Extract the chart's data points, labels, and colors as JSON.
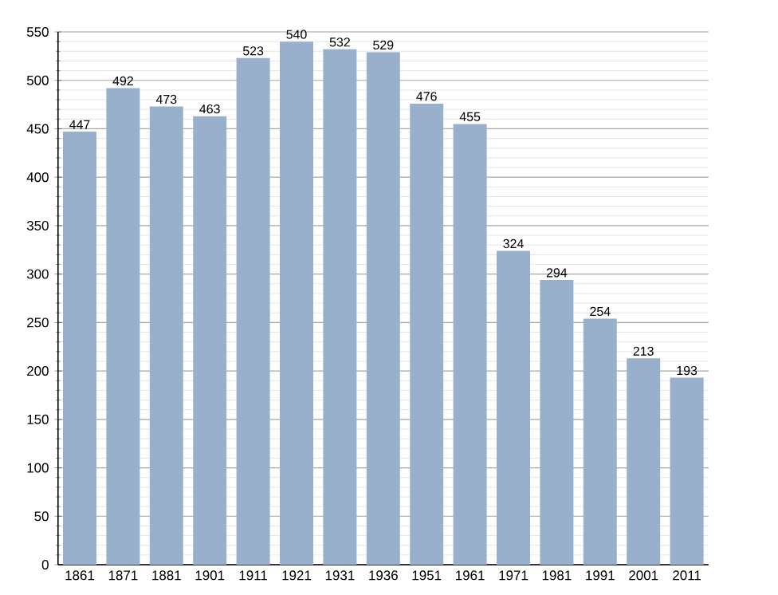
{
  "chart_data": {
    "type": "bar",
    "categories": [
      "1861",
      "1871",
      "1881",
      "1901",
      "1911",
      "1921",
      "1931",
      "1936",
      "1951",
      "1961",
      "1971",
      "1981",
      "1991",
      "2001",
      "2011"
    ],
    "values": [
      447,
      492,
      473,
      463,
      523,
      540,
      532,
      529,
      476,
      455,
      324,
      294,
      254,
      213,
      193
    ],
    "color": "#98b0cc",
    "ylim": [
      0,
      550
    ],
    "yticks": [
      0,
      50,
      100,
      150,
      200,
      250,
      300,
      350,
      400,
      450,
      500,
      550
    ],
    "grid": "y",
    "data_labels": true
  }
}
